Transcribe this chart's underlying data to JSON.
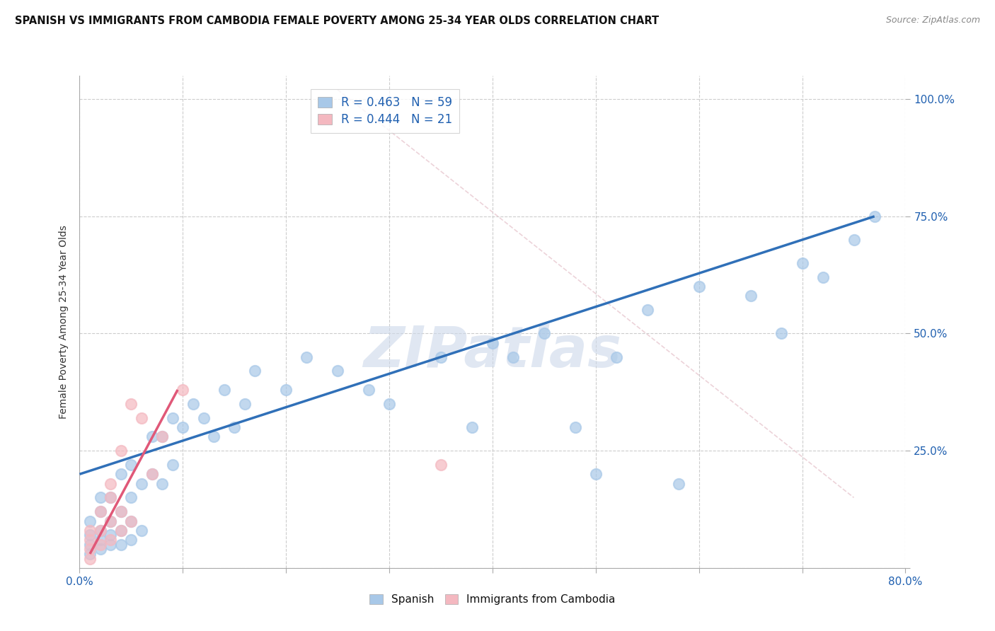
{
  "title": "SPANISH VS IMMIGRANTS FROM CAMBODIA FEMALE POVERTY AMONG 25-34 YEAR OLDS CORRELATION CHART",
  "source": "Source: ZipAtlas.com",
  "ylabel": "Female Poverty Among 25-34 Year Olds",
  "xlim": [
    0.0,
    0.8
  ],
  "ylim": [
    0.0,
    1.05
  ],
  "xtick_positions": [
    0.0,
    0.1,
    0.2,
    0.3,
    0.4,
    0.5,
    0.6,
    0.7,
    0.8
  ],
  "xticklabels": [
    "0.0%",
    "",
    "",
    "",
    "",
    "",
    "",
    "",
    "80.0%"
  ],
  "ytick_positions": [
    0.0,
    0.25,
    0.5,
    0.75,
    1.0
  ],
  "ytick_labels_right": [
    "",
    "25.0%",
    "50.0%",
    "75.0%",
    "100.0%"
  ],
  "legend1_label": "R = 0.463   N = 59",
  "legend2_label": "R = 0.444   N = 21",
  "blue_scatter_color": "#a8c8e8",
  "pink_scatter_color": "#f4b8c0",
  "blue_line_color": "#3070b8",
  "pink_line_color": "#e05878",
  "diag_line_color": "#e8c8d0",
  "watermark": "ZIPatlas",
  "spanish_x": [
    0.01,
    0.01,
    0.01,
    0.01,
    0.02,
    0.02,
    0.02,
    0.02,
    0.02,
    0.03,
    0.03,
    0.03,
    0.03,
    0.04,
    0.04,
    0.04,
    0.04,
    0.05,
    0.05,
    0.05,
    0.05,
    0.06,
    0.06,
    0.07,
    0.07,
    0.08,
    0.08,
    0.09,
    0.09,
    0.1,
    0.11,
    0.12,
    0.13,
    0.14,
    0.15,
    0.16,
    0.17,
    0.2,
    0.22,
    0.25,
    0.28,
    0.3,
    0.35,
    0.38,
    0.4,
    0.42,
    0.45,
    0.48,
    0.5,
    0.52,
    0.55,
    0.58,
    0.6,
    0.65,
    0.68,
    0.7,
    0.72,
    0.75,
    0.77
  ],
  "spanish_y": [
    0.03,
    0.05,
    0.07,
    0.1,
    0.04,
    0.06,
    0.08,
    0.12,
    0.15,
    0.05,
    0.07,
    0.1,
    0.15,
    0.05,
    0.08,
    0.12,
    0.2,
    0.06,
    0.1,
    0.15,
    0.22,
    0.08,
    0.18,
    0.2,
    0.28,
    0.18,
    0.28,
    0.22,
    0.32,
    0.3,
    0.35,
    0.32,
    0.28,
    0.38,
    0.3,
    0.35,
    0.42,
    0.38,
    0.45,
    0.42,
    0.38,
    0.35,
    0.45,
    0.3,
    0.48,
    0.45,
    0.5,
    0.3,
    0.2,
    0.45,
    0.55,
    0.18,
    0.6,
    0.58,
    0.5,
    0.65,
    0.62,
    0.7,
    0.75
  ],
  "cambodia_x": [
    0.01,
    0.01,
    0.01,
    0.01,
    0.02,
    0.02,
    0.02,
    0.03,
    0.03,
    0.03,
    0.03,
    0.04,
    0.04,
    0.04,
    0.05,
    0.05,
    0.06,
    0.07,
    0.08,
    0.1,
    0.35
  ],
  "cambodia_y": [
    0.02,
    0.04,
    0.06,
    0.08,
    0.05,
    0.08,
    0.12,
    0.06,
    0.1,
    0.15,
    0.18,
    0.08,
    0.12,
    0.25,
    0.1,
    0.35,
    0.32,
    0.2,
    0.28,
    0.38,
    0.22
  ],
  "blue_line_x": [
    0.0,
    0.77
  ],
  "blue_line_y": [
    0.2,
    0.75
  ],
  "pink_line_x": [
    0.01,
    0.095
  ],
  "pink_line_y": [
    0.03,
    0.38
  ]
}
